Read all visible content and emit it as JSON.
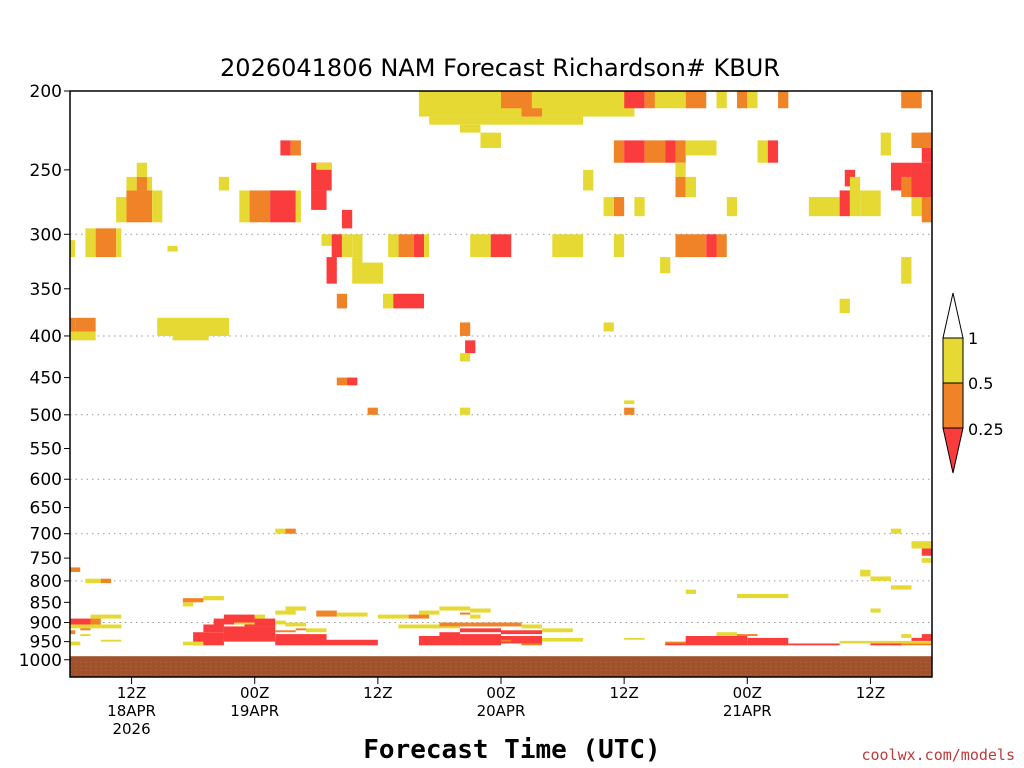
{
  "chart_data": {
    "type": "heatmap",
    "title": "2026041806 NAM Forecast Richardson# KBUR",
    "xlabel": "Forecast Time (UTC)",
    "ylabel": "",
    "y_axis": {
      "scale": "log",
      "inverted": true,
      "range": [
        1050,
        200
      ],
      "ticks": [
        "200",
        "250",
        "300",
        "350",
        "400",
        "450",
        "500",
        "550",
        "600",
        "650",
        "700",
        "750",
        "800",
        "850",
        "900",
        "950",
        "1000"
      ],
      "dotted_gridlines_at": [
        300,
        400,
        500,
        600,
        700,
        800,
        900
      ]
    },
    "x_axis": {
      "range": [
        0,
        84
      ],
      "ticks": [
        {
          "hour": 6,
          "lines": [
            "12Z",
            "18APR",
            "2026"
          ]
        },
        {
          "hour": 18,
          "lines": [
            "00Z",
            "19APR"
          ]
        },
        {
          "hour": 30,
          "lines": [
            "12Z"
          ]
        },
        {
          "hour": 42,
          "lines": [
            "00Z",
            "20APR"
          ]
        },
        {
          "hour": 54,
          "lines": [
            "12Z"
          ]
        },
        {
          "hour": 66,
          "lines": [
            "00Z",
            "21APR"
          ]
        },
        {
          "hour": 78,
          "lines": [
            "12Z"
          ]
        }
      ]
    },
    "legend": {
      "placement": "right",
      "levels": [
        "1",
        "0.5",
        "0.25"
      ],
      "colors": {
        "above_1": "#ffffff",
        "band_05_1": "#e6d933",
        "band_025_05": "#f08228",
        "below_025": "#fa3c3c"
      }
    },
    "ground": {
      "pressure_from": 990,
      "color": "#a0522d"
    },
    "cells": [
      [
        0,
        0.5,
        305,
        320,
        "y"
      ],
      [
        1.5,
        2.5,
        295,
        320,
        "y"
      ],
      [
        2.5,
        4.5,
        295,
        320,
        "o"
      ],
      [
        4.5,
        5,
        295,
        320,
        "y"
      ],
      [
        0,
        0.5,
        380,
        395,
        "o"
      ],
      [
        0.5,
        2.5,
        380,
        395,
        "o"
      ],
      [
        0,
        0.5,
        395,
        405,
        "y"
      ],
      [
        0.5,
        2.5,
        395,
        405,
        "y"
      ],
      [
        4.5,
        5.5,
        270,
        290,
        "y"
      ],
      [
        5.5,
        8,
        265,
        290,
        "o"
      ],
      [
        8,
        9,
        265,
        290,
        "y"
      ],
      [
        5.5,
        6.5,
        255,
        265,
        "y"
      ],
      [
        6.5,
        7.5,
        255,
        265,
        "o"
      ],
      [
        7.5,
        8,
        255,
        265,
        "y"
      ],
      [
        6.5,
        7.5,
        245,
        255,
        "y"
      ],
      [
        9.5,
        10.5,
        310,
        315,
        "y"
      ],
      [
        8.5,
        15.5,
        380,
        400,
        "y"
      ],
      [
        10,
        13.5,
        400,
        405,
        "y"
      ],
      [
        14.5,
        15.5,
        255,
        265,
        "y"
      ],
      [
        16.5,
        17.5,
        265,
        290,
        "y"
      ],
      [
        17.5,
        19.5,
        265,
        290,
        "o"
      ],
      [
        19.5,
        22,
        265,
        290,
        "r"
      ],
      [
        22,
        22.5,
        265,
        290,
        "y"
      ],
      [
        20.5,
        21.5,
        230,
        240,
        "r"
      ],
      [
        21.5,
        22.5,
        230,
        240,
        "o"
      ],
      [
        23.5,
        25.5,
        245,
        265,
        "r"
      ],
      [
        23.5,
        25,
        265,
        280,
        "r"
      ],
      [
        24,
        25.5,
        245,
        250,
        "y"
      ],
      [
        24.5,
        25.5,
        300,
        310,
        "y"
      ],
      [
        25.5,
        26.5,
        300,
        320,
        "r"
      ],
      [
        26.5,
        27.5,
        300,
        320,
        "y"
      ],
      [
        26.5,
        27.5,
        280,
        295,
        "r"
      ],
      [
        27.5,
        28.5,
        300,
        320,
        "y"
      ],
      [
        27.5,
        28.5,
        320,
        345,
        "y"
      ],
      [
        25,
        26,
        320,
        345,
        "r"
      ],
      [
        28.5,
        30.5,
        325,
        345,
        "y"
      ],
      [
        26,
        27,
        355,
        370,
        "o"
      ],
      [
        30.5,
        31.5,
        355,
        370,
        "y"
      ],
      [
        31.5,
        34.5,
        355,
        370,
        "r"
      ],
      [
        32,
        33.5,
        300,
        320,
        "o"
      ],
      [
        33.5,
        34.5,
        300,
        320,
        "r"
      ],
      [
        34.5,
        35,
        300,
        320,
        "y"
      ],
      [
        31,
        32,
        300,
        320,
        "y"
      ],
      [
        34,
        55,
        200,
        215,
        "y"
      ],
      [
        35,
        50,
        215,
        220,
        "y"
      ],
      [
        38,
        40,
        220,
        225,
        "y"
      ],
      [
        42,
        44,
        200,
        210,
        "o"
      ],
      [
        44,
        46,
        200,
        215,
        "o"
      ],
      [
        45,
        46,
        200,
        210,
        "y"
      ],
      [
        40,
        42,
        225,
        235,
        "y"
      ],
      [
        39,
        41,
        300,
        320,
        "y"
      ],
      [
        41,
        43,
        300,
        320,
        "r"
      ],
      [
        47,
        50,
        300,
        320,
        "y"
      ],
      [
        50,
        51,
        250,
        265,
        "y"
      ],
      [
        52,
        53,
        270,
        285,
        "y"
      ],
      [
        53,
        54,
        270,
        285,
        "o"
      ],
      [
        55,
        56,
        270,
        285,
        "y"
      ],
      [
        53,
        54,
        300,
        320,
        "y"
      ],
      [
        54,
        56,
        200,
        210,
        "r"
      ],
      [
        53,
        54,
        200,
        210,
        "y"
      ],
      [
        56,
        57,
        200,
        210,
        "o"
      ],
      [
        57,
        60,
        200,
        210,
        "y"
      ],
      [
        60,
        62,
        200,
        210,
        "o"
      ],
      [
        63,
        64,
        200,
        210,
        "y"
      ],
      [
        65,
        66,
        200,
        210,
        "o"
      ],
      [
        53,
        54,
        230,
        245,
        "o"
      ],
      [
        54,
        56,
        230,
        245,
        "r"
      ],
      [
        56,
        58,
        230,
        245,
        "o"
      ],
      [
        58,
        59,
        230,
        245,
        "r"
      ],
      [
        59,
        60,
        230,
        245,
        "o"
      ],
      [
        60,
        63,
        230,
        240,
        "y"
      ],
      [
        59,
        60,
        245,
        255,
        "y"
      ],
      [
        59,
        60,
        255,
        270,
        "o"
      ],
      [
        60,
        61,
        255,
        270,
        "y"
      ],
      [
        59,
        62,
        300,
        320,
        "o"
      ],
      [
        62,
        63,
        300,
        320,
        "r"
      ],
      [
        63,
        64,
        300,
        320,
        "o"
      ],
      [
        64,
        65,
        270,
        285,
        "y"
      ],
      [
        66,
        67,
        200,
        210,
        "y"
      ],
      [
        69,
        70,
        200,
        210,
        "o"
      ],
      [
        67,
        68,
        230,
        245,
        "y"
      ],
      [
        68,
        69,
        230,
        245,
        "r"
      ],
      [
        72,
        75,
        270,
        285,
        "y"
      ],
      [
        75,
        76,
        265,
        285,
        "r"
      ],
      [
        76,
        77,
        265,
        285,
        "y"
      ],
      [
        77,
        79,
        265,
        285,
        "y"
      ],
      [
        75.5,
        76.5,
        250,
        262,
        "r"
      ],
      [
        76,
        77,
        255,
        270,
        "y"
      ],
      [
        79,
        80,
        225,
        240,
        "y"
      ],
      [
        81,
        83,
        200,
        210,
        "o"
      ],
      [
        80,
        82,
        245,
        265,
        "r"
      ],
      [
        82,
        84,
        245,
        270,
        "r"
      ],
      [
        81,
        82,
        255,
        270,
        "o"
      ],
      [
        83,
        84,
        225,
        245,
        "r"
      ],
      [
        82,
        84,
        225,
        235,
        "o"
      ],
      [
        82,
        83,
        270,
        285,
        "y"
      ],
      [
        83,
        84,
        270,
        290,
        "o"
      ],
      [
        81,
        82,
        320,
        345,
        "y"
      ],
      [
        75,
        76,
        360,
        375,
        "y"
      ],
      [
        57.5,
        58.5,
        320,
        335,
        "y"
      ],
      [
        52,
        53,
        385,
        395,
        "y"
      ],
      [
        38,
        39,
        385,
        400,
        "o"
      ],
      [
        38.5,
        39.5,
        405,
        420,
        "r"
      ],
      [
        38,
        39,
        420,
        430,
        "y"
      ],
      [
        26,
        27,
        450,
        460,
        "o"
      ],
      [
        27,
        28,
        450,
        460,
        "r"
      ],
      [
        29,
        30,
        490,
        500,
        "o"
      ],
      [
        38,
        39,
        490,
        500,
        "y"
      ],
      [
        54,
        55,
        490,
        500,
        "o"
      ],
      [
        54,
        55,
        480,
        485,
        "y"
      ],
      [
        20,
        21,
        690,
        700,
        "y"
      ],
      [
        21,
        22,
        690,
        700,
        "o"
      ],
      [
        80,
        81,
        690,
        700,
        "y"
      ],
      [
        82,
        84,
        715,
        730,
        "y"
      ],
      [
        83,
        84,
        730,
        745,
        "r"
      ],
      [
        83,
        84,
        750,
        760,
        "y"
      ],
      [
        0,
        1,
        770,
        780,
        "o"
      ],
      [
        1.5,
        3,
        795,
        805,
        "y"
      ],
      [
        3,
        4,
        795,
        805,
        "o"
      ],
      [
        80,
        82,
        810,
        820,
        "y"
      ],
      [
        77,
        78,
        775,
        790,
        "y"
      ],
      [
        78,
        80,
        790,
        800,
        "y"
      ],
      [
        60,
        61,
        820,
        830,
        "y"
      ],
      [
        65,
        70,
        830,
        840,
        "y"
      ],
      [
        11,
        13,
        840,
        850,
        "o"
      ],
      [
        13,
        15,
        835,
        845,
        "y"
      ],
      [
        11,
        12,
        850,
        860,
        "y"
      ],
      [
        78,
        79,
        865,
        875,
        "y"
      ],
      [
        21,
        23,
        860,
        870,
        "y"
      ],
      [
        20,
        22,
        870,
        880,
        "y"
      ],
      [
        24,
        26,
        870,
        885,
        "o"
      ],
      [
        26,
        29,
        875,
        885,
        "y"
      ],
      [
        30,
        33,
        880,
        890,
        "y"
      ],
      [
        33,
        35,
        880,
        890,
        "o"
      ],
      [
        34,
        36,
        870,
        880,
        "y"
      ],
      [
        36,
        39,
        860,
        870,
        "y"
      ],
      [
        39,
        41,
        865,
        875,
        "y"
      ],
      [
        38,
        39,
        875,
        880,
        "o"
      ],
      [
        39,
        40,
        880,
        890,
        "y"
      ],
      [
        0,
        2,
        890,
        905,
        "r"
      ],
      [
        2,
        3,
        890,
        905,
        "o"
      ],
      [
        2,
        5,
        880,
        890,
        "y"
      ],
      [
        0,
        5,
        905,
        915,
        "y"
      ],
      [
        1,
        2,
        915,
        920,
        "o"
      ],
      [
        0,
        0.5,
        920,
        930,
        "o"
      ],
      [
        1,
        2,
        930,
        935,
        "y"
      ],
      [
        3,
        5,
        945,
        950,
        "y"
      ],
      [
        0,
        1,
        950,
        960,
        "y"
      ],
      [
        14,
        16,
        890,
        905,
        "r"
      ],
      [
        15,
        18,
        880,
        900,
        "r"
      ],
      [
        17,
        20,
        890,
        910,
        "r"
      ],
      [
        18,
        19,
        880,
        890,
        "y"
      ],
      [
        20,
        21,
        895,
        905,
        "y"
      ],
      [
        21,
        23,
        900,
        910,
        "y"
      ],
      [
        13,
        15,
        905,
        925,
        "r"
      ],
      [
        15,
        20,
        910,
        950,
        "r"
      ],
      [
        12,
        15,
        925,
        960,
        "r"
      ],
      [
        20,
        25,
        930,
        960,
        "r"
      ],
      [
        25,
        30,
        945,
        960,
        "r"
      ],
      [
        16,
        18,
        900,
        905,
        "y"
      ],
      [
        22,
        23,
        915,
        920,
        "o"
      ],
      [
        23,
        25,
        915,
        925,
        "y"
      ],
      [
        20,
        22,
        920,
        925,
        "o"
      ],
      [
        11,
        13,
        950,
        960,
        "y"
      ],
      [
        32,
        36,
        905,
        915,
        "y"
      ],
      [
        36,
        39,
        900,
        910,
        "o"
      ],
      [
        35,
        38,
        910,
        915,
        "y"
      ],
      [
        39,
        44,
        900,
        910,
        "o"
      ],
      [
        44,
        46,
        905,
        915,
        "y"
      ],
      [
        46,
        49,
        915,
        925,
        "y"
      ],
      [
        38,
        42,
        915,
        925,
        "r"
      ],
      [
        36,
        38,
        925,
        935,
        "r"
      ],
      [
        42,
        46,
        920,
        930,
        "r"
      ],
      [
        34,
        38,
        935,
        960,
        "r"
      ],
      [
        38,
        42,
        930,
        960,
        "r"
      ],
      [
        42,
        46,
        935,
        955,
        "r"
      ],
      [
        46,
        50,
        940,
        950,
        "y"
      ],
      [
        44,
        46,
        955,
        960,
        "o"
      ],
      [
        42,
        43,
        945,
        950,
        "o"
      ],
      [
        54,
        56,
        940,
        945,
        "y"
      ],
      [
        58,
        61,
        950,
        955,
        "o"
      ],
      [
        61,
        63,
        940,
        945,
        "o"
      ],
      [
        63,
        65,
        925,
        935,
        "y"
      ],
      [
        65,
        67,
        930,
        935,
        "o"
      ],
      [
        60,
        66,
        935,
        960,
        "r"
      ],
      [
        66,
        70,
        940,
        960,
        "r"
      ],
      [
        58,
        60,
        955,
        960,
        "r"
      ],
      [
        70,
        75,
        955,
        960,
        "r"
      ],
      [
        75,
        84,
        948,
        955,
        "y"
      ],
      [
        80,
        84,
        955,
        960,
        "o"
      ],
      [
        82,
        84,
        940,
        948,
        "r"
      ],
      [
        81,
        82,
        930,
        940,
        "y"
      ],
      [
        83,
        84,
        930,
        940,
        "r"
      ],
      [
        78,
        81,
        955,
        960,
        "r"
      ]
    ]
  }
}
